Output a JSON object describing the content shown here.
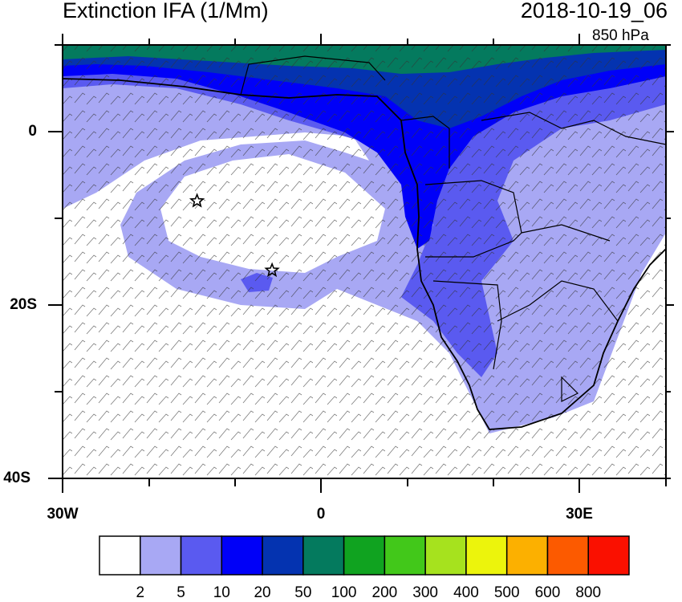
{
  "header": {
    "title": "Extinction IFA (1/Mm)",
    "timestamp": "2018-10-19_06",
    "pressure_level": "850 hPa"
  },
  "axes": {
    "y_labels": [
      "0",
      "20S",
      "40S"
    ],
    "x_labels": [
      "30W",
      "0",
      "30E"
    ]
  },
  "colorbar": {
    "colors": [
      "#ffffff",
      "#a8a8f4",
      "#5a5af0",
      "#0000f8",
      "#0433b0",
      "#047a5e",
      "#10a320",
      "#42c81a",
      "#a6e21e",
      "#ecf40c",
      "#fcb000",
      "#fc5a00",
      "#fa1000"
    ],
    "labels": [
      "2",
      "5",
      "10",
      "20",
      "50",
      "100",
      "200",
      "300",
      "400",
      "500",
      "600",
      "800"
    ]
  },
  "markers": [
    {
      "name": "star-marker",
      "lon": -14.4,
      "lat": -8
    },
    {
      "name": "star-marker",
      "lon": -5.7,
      "lat": -16
    }
  ]
}
